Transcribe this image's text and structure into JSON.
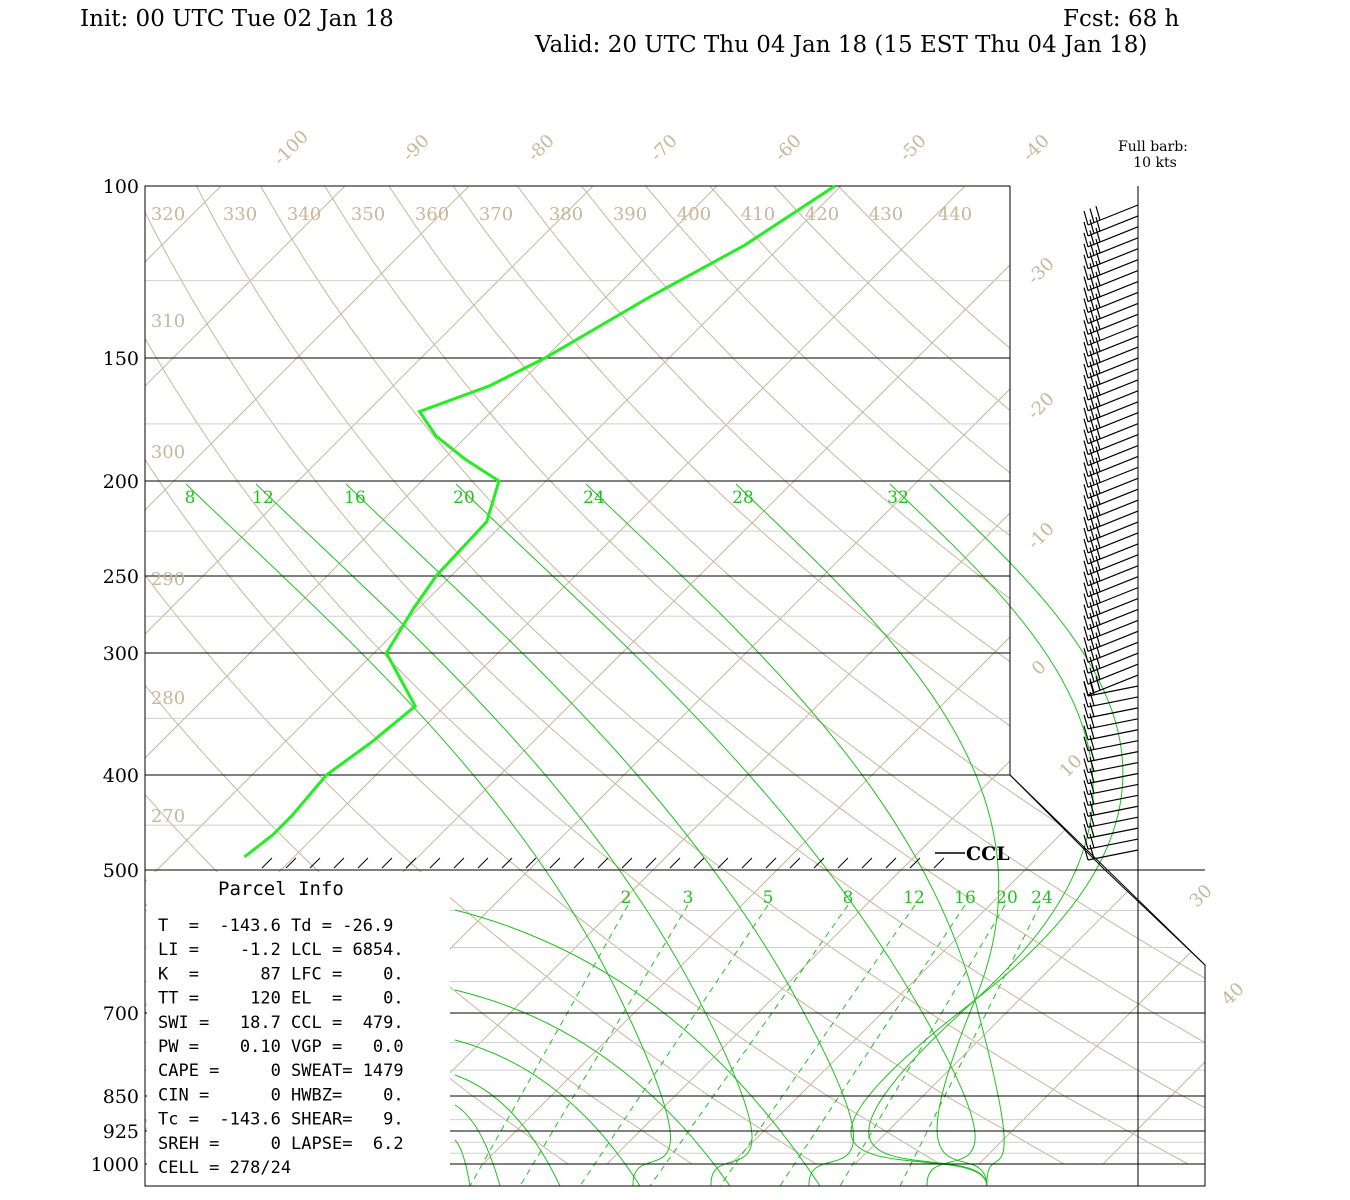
{
  "header": {
    "init": "Init: 00 UTC Tue 02 Jan 18",
    "fcst": "Fcst:   68 h",
    "valid": "Valid: 20 UTC Thu 04 Jan 18 (15 EST Thu 04 Jan 18)"
  },
  "barb_legend": {
    "line1": "Full barb:",
    "line2": "10 kts"
  },
  "ccl_label": "CCL",
  "parcel_info": {
    "title": "Parcel Info",
    "rows": [
      "T  =  -143.6 Td = -26.9",
      "LI =    -1.2 LCL = 6854.",
      "K  =      87 LFC =    0.",
      "TT =     120 EL  =    0.",
      "SWI =   18.7 CCL =  479.",
      "PW =    0.10 VGP =   0.0",
      "CAPE =     0 SWEAT= 1479",
      "CIN =      0 HWBZ=    0.",
      "Tc =  -143.6 SHEAR=   9.",
      "SREH =     0 LAPSE=  6.2",
      "CELL = 278/24"
    ]
  },
  "chart_data": {
    "type": "line",
    "chart_kind": "skew-T log-p sounding",
    "pressure_levels": [
      "100",
      "150",
      "200",
      "250",
      "300",
      "400",
      "500",
      "700",
      "850",
      "925",
      "1000"
    ],
    "isotherm_labels": [
      "-100",
      "-90",
      "-80",
      "-70",
      "-60",
      "-50",
      "-40",
      "-30",
      "-20",
      "-10",
      "0",
      "10",
      "30",
      "40"
    ],
    "theta_labels": [
      "320",
      "330",
      "340",
      "350",
      "360",
      "370",
      "380",
      "390",
      "400",
      "410",
      "420",
      "430",
      "440",
      "310",
      "300",
      "290",
      "280",
      "270"
    ],
    "theta_e_labels": [
      "8",
      "12",
      "16",
      "20",
      "24",
      "28",
      "32"
    ],
    "mixing_ratio_labels": [
      "2",
      "3",
      "5",
      "8",
      "12",
      "16",
      "20",
      "24"
    ],
    "colors": {
      "temperature": "#22ee22",
      "grid": "#c9b79a",
      "adiabat": "#1fc21f",
      "axes": "#000000"
    },
    "series": [
      {
        "color": "#22ee22",
        "points": [
          [
            100,
            -40.5
          ],
          [
            115,
            -43
          ],
          [
            130,
            -46.5
          ],
          [
            150,
            -50
          ],
          [
            160,
            -52.2
          ],
          [
            170,
            -55.8
          ],
          [
            180,
            -52.5
          ],
          [
            190,
            -48.3
          ],
          [
            200,
            -43.8
          ],
          [
            220,
            -41.5
          ],
          [
            250,
            -41.2
          ],
          [
            270,
            -40.4
          ],
          [
            300,
            -39
          ],
          [
            340,
            -32.4
          ],
          [
            370,
            -33
          ],
          [
            400,
            -34
          ],
          [
            440,
            -33.5
          ],
          [
            460,
            -33.5
          ],
          [
            485,
            -34
          ]
        ]
      }
    ],
    "wind_barbs": {
      "unit": "kts",
      "rows": 60
    }
  }
}
